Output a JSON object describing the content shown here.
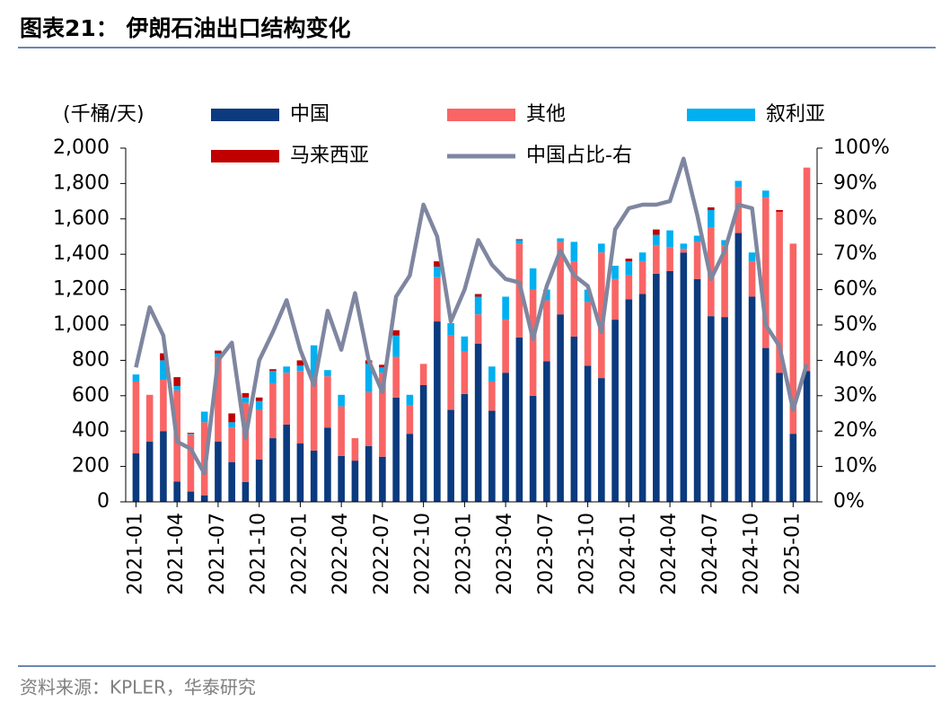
{
  "chart_data": {
    "type": "bar",
    "title": "图表21： 伊朗石油出口结构变化",
    "ylabel": "(千桶/天)",
    "source": "资料来源：KPLER，华泰研究",
    "categories": [
      "2021-01",
      null,
      null,
      "2021-04",
      null,
      null,
      "2021-07",
      null,
      null,
      "2021-10",
      null,
      null,
      "2022-01",
      null,
      null,
      "2022-04",
      null,
      null,
      "2022-07",
      null,
      null,
      "2022-10",
      null,
      null,
      "2023-01",
      null,
      null,
      "2023-04",
      null,
      null,
      "2023-07",
      null,
      null,
      "2023-10",
      null,
      null,
      "2024-01",
      null,
      null,
      "2024-04",
      null,
      null,
      "2024-07",
      null,
      null,
      "2024-10",
      null,
      null,
      "2025-01",
      null
    ],
    "series": [
      {
        "name": "中国",
        "color": "#0b3a7e",
        "values": [
          274,
          340,
          400,
          115,
          58,
          37,
          340,
          225,
          112,
          240,
          360,
          437,
          330,
          290,
          420,
          260,
          233,
          315,
          255,
          590,
          385,
          660,
          1020,
          520,
          610,
          895,
          515,
          730,
          930,
          600,
          795,
          1060,
          935,
          770,
          700,
          1030,
          1145,
          1175,
          1290,
          1305,
          1410,
          1260,
          1050,
          1045,
          1520,
          1160,
          870,
          730,
          385,
          740
        ]
      },
      {
        "name": "其他",
        "color": "#f96565",
        "values": [
          406,
          265,
          290,
          515,
          322,
          413,
          480,
          195,
          448,
          280,
          310,
          293,
          410,
          400,
          290,
          280,
          127,
          305,
          475,
          230,
          160,
          120,
          250,
          420,
          240,
          165,
          165,
          300,
          530,
          600,
          345,
          410,
          425,
          360,
          710,
          230,
          135,
          185,
          160,
          135,
          20,
          210,
          500,
          405,
          260,
          200,
          850,
          910,
          1075,
          1150
        ]
      },
      {
        "name": "叙利亚",
        "color": "#00b0f0",
        "values": [
          40,
          0,
          110,
          25,
          5,
          60,
          20,
          30,
          30,
          50,
          70,
          35,
          30,
          195,
          35,
          65,
          0,
          160,
          30,
          120,
          60,
          0,
          60,
          70,
          85,
          100,
          85,
          130,
          20,
          120,
          60,
          20,
          110,
          70,
          50,
          75,
          80,
          50,
          60,
          95,
          30,
          35,
          100,
          30,
          35,
          50,
          40,
          0,
          0,
          0
        ]
      },
      {
        "name": "马来西亚",
        "color": "#c00000",
        "values": [
          0,
          0,
          40,
          50,
          5,
          0,
          15,
          50,
          25,
          20,
          10,
          0,
          30,
          0,
          0,
          0,
          0,
          20,
          15,
          30,
          0,
          0,
          30,
          0,
          0,
          15,
          0,
          0,
          5,
          0,
          0,
          0,
          0,
          0,
          0,
          0,
          15,
          0,
          30,
          0,
          0,
          0,
          15,
          0,
          0,
          0,
          0,
          10,
          0,
          0
        ]
      },
      {
        "name": "中国占比-右",
        "color": "#7f86a0",
        "type": "line",
        "axis": "y2",
        "values": [
          38,
          55,
          47,
          17,
          15,
          8,
          40,
          45,
          18,
          40,
          48,
          57,
          43,
          33,
          54,
          43,
          59,
          40,
          31,
          58,
          64,
          84,
          75,
          51,
          60,
          74,
          67,
          63,
          62,
          46,
          61,
          71,
          64,
          61,
          48,
          77,
          83,
          84,
          84,
          85,
          97,
          81,
          63,
          71,
          84,
          83,
          50,
          44,
          26,
          39
        ]
      }
    ],
    "ylim": [
      0,
      2000
    ],
    "yticks": [
      0,
      200,
      400,
      600,
      800,
      {
        "value": 1000,
        "label": "1,000"
      },
      {
        "value": 1200,
        "label": "1,200"
      },
      {
        "value": 1400,
        "label": "1,400"
      },
      {
        "value": 1600,
        "label": "1,600"
      },
      {
        "value": 1800,
        "label": "1,800"
      },
      {
        "value": 2000,
        "label": "2,000"
      }
    ],
    "y2lim": [
      0,
      100
    ],
    "y2ticks": [
      {
        "value": 0,
        "label": "0%"
      },
      {
        "value": 10,
        "label": "10%"
      },
      {
        "value": 20,
        "label": "20%"
      },
      {
        "value": 30,
        "label": "30%"
      },
      {
        "value": 40,
        "label": "40%"
      },
      {
        "value": 50,
        "label": "50%"
      },
      {
        "value": 60,
        "label": "60%"
      },
      {
        "value": 70,
        "label": "70%"
      },
      {
        "value": 80,
        "label": "80%"
      },
      {
        "value": 90,
        "label": "90%"
      },
      {
        "value": 100,
        "label": "100%"
      }
    ],
    "grid": false
  }
}
